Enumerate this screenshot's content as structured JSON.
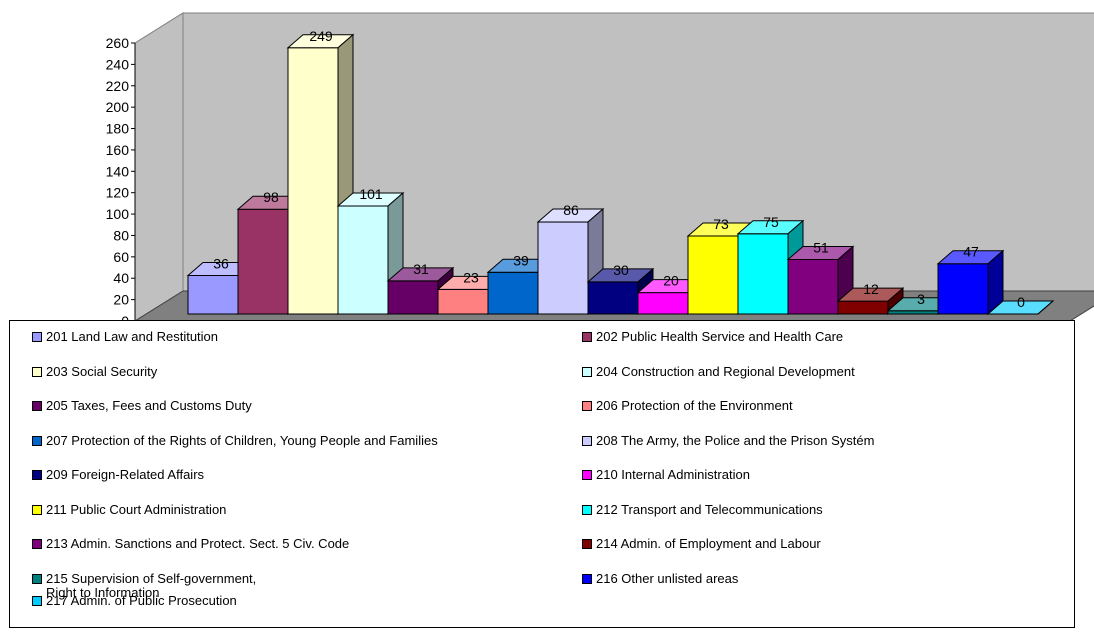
{
  "chart_data": {
    "type": "bar",
    "title": "",
    "xlabel": "",
    "ylabel": "",
    "ylim": [
      0,
      260
    ],
    "yticks": [
      "0",
      "20",
      "40",
      "60",
      "80",
      "100",
      "120",
      "140",
      "160",
      "180",
      "200",
      "220",
      "240",
      "260"
    ],
    "grid": false,
    "legend_position": "bottom",
    "series": [
      {
        "code": "201",
        "name": "201 Land Law and Restitution",
        "value": 36,
        "label": "36",
        "color": "#9999ff"
      },
      {
        "code": "202",
        "name": "202 Public Health Service and Health Care",
        "value": 98,
        "label": "98",
        "color": "#993366"
      },
      {
        "code": "203",
        "name": "203 Social Security",
        "value": 249,
        "label": "249",
        "color": "#ffffcc"
      },
      {
        "code": "204",
        "name": "204 Construction and Regional Development",
        "value": 101,
        "label": "101",
        "color": "#ccffff"
      },
      {
        "code": "205",
        "name": "205 Taxes, Fees and Customs Duty",
        "value": 31,
        "label": "31",
        "color": "#660066"
      },
      {
        "code": "206",
        "name": "206 Protection of the Environment",
        "value": 23,
        "label": "23",
        "color": "#ff8080"
      },
      {
        "code": "207",
        "name": "207 Protection of the Rights of Children, Young People and Families",
        "value": 39,
        "label": "39",
        "color": "#0066cc"
      },
      {
        "code": "208",
        "name": "208 The Army, the Police and the Prison Systém",
        "value": 86,
        "label": "86",
        "color": "#ccccff"
      },
      {
        "code": "209",
        "name": "209 Foreign-Related Affairs",
        "value": 30,
        "label": "30",
        "color": "#000080"
      },
      {
        "code": "210",
        "name": "210 Internal Administration",
        "value": 20,
        "label": "20",
        "color": "#ff00ff"
      },
      {
        "code": "211",
        "name": "211 Public Court Administration",
        "value": 73,
        "label": "73",
        "color": "#ffff00"
      },
      {
        "code": "212",
        "name": "212 Transport and Telecommunications",
        "value": 75,
        "label": "75",
        "color": "#00ffff"
      },
      {
        "code": "213",
        "name": "213 Admin. Sanctions and Protect. Sect. 5 Civ. Code",
        "value": 51,
        "label": "51",
        "color": "#800080"
      },
      {
        "code": "214",
        "name": "214 Admin. of Employment and Labour",
        "value": 12,
        "label": "12",
        "color": "#800000"
      },
      {
        "code": "215",
        "name": "215 Supervision of Self-government,\nRight to Information",
        "value": 3,
        "label": "3",
        "color": "#008080"
      },
      {
        "code": "216",
        "name": "216 Other unlisted areas",
        "value": 47,
        "label": "47",
        "color": "#0000ff"
      },
      {
        "code": "217",
        "name": "217 Admin. of Public Prosecution",
        "value": 0,
        "label": "0",
        "color": "#00ccff"
      }
    ]
  }
}
